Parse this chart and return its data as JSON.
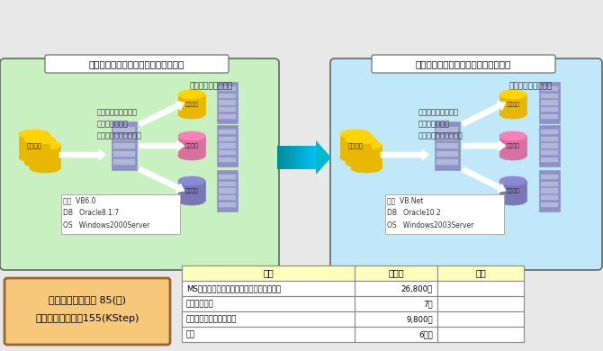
{
  "title_old": "金融情報配信会社（旧システム環境）",
  "title_new": "金融情報配信会社（新システム環境）",
  "server_label": "各種情報配信サーバ",
  "process_text": "・情報ファイル取得\n・付加情報算出\n・各種サーバ向け出力",
  "lang_old": "言語  VB6.0\nDB   Oracle8.1.7\nOS   Windows2000Server",
  "lang_new": "言語  VB.Net\nDB   Oracle10.2\nOS   Windows2003Server",
  "file_label": "ファイル",
  "box_left_bg": "#c8f0c0",
  "box_right_bg": "#c0e8f8",
  "box_border": "#666666",
  "info_box_bg": "#f5c87a",
  "info_box_border": "#996633",
  "table_header_bg": "#ffffbb",
  "table_border": "#888888",
  "summary_line1": "プログラム本数　 85(本)",
  "summary_line2": "ステップ総数　　155(KStep)",
  "table_headers": [
    "分類",
    "実数値",
    "備考"
  ],
  "table_rows": [
    [
      "MSアップグレードウィザード後のエラー数",
      "26,800個",
      ""
    ],
    [
      "作成ツール数",
      "7本",
      ""
    ],
    [
      "ツールで変換した問題数",
      "9,800個",
      ""
    ],
    [
      "期間",
      "6ヶ月",
      ""
    ]
  ],
  "cylinder_colors": {
    "yellow": "#e8b800",
    "pink": "#d870a0",
    "purple": "#7878b8"
  },
  "server_color_body": "#9090c8",
  "server_color_slot": "#b0b8d8",
  "bg_color": "#e8e8e8"
}
